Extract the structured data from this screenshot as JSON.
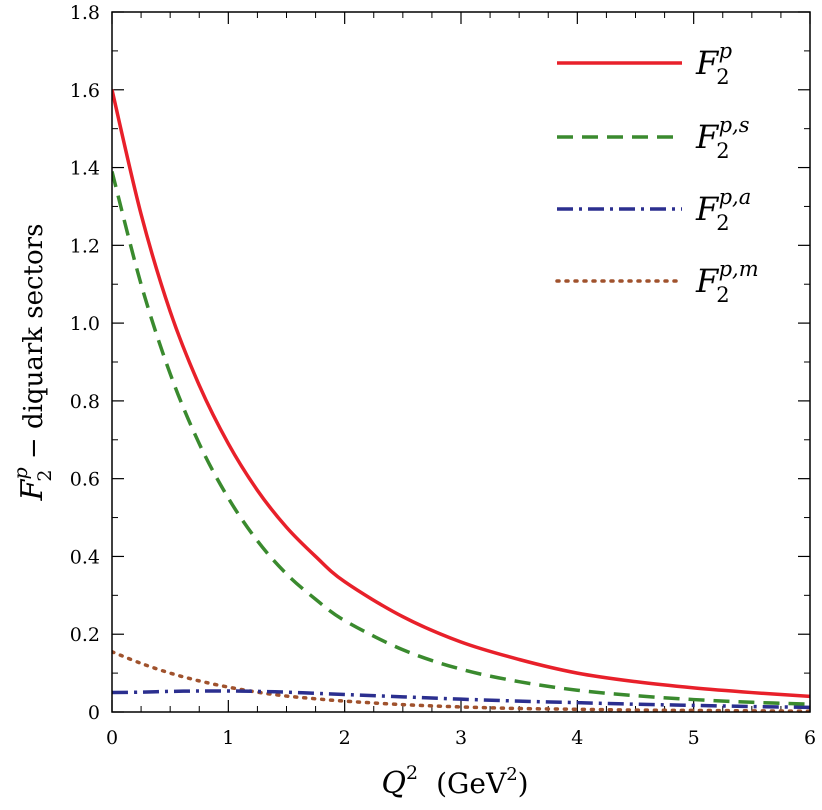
{
  "chart_data": {
    "type": "line",
    "xlabel": {
      "main": "Q",
      "sup": "2",
      "unit_pre": "(GeV",
      "unit_sup": "2",
      "unit_post": ")"
    },
    "ylabel": {
      "main": "F",
      "sub": "2",
      "sup": "p",
      "rest": " − diquark sectors"
    },
    "xlim": [
      0,
      6
    ],
    "ylim": [
      0,
      1.8
    ],
    "xticks": [
      "0",
      "1",
      "2",
      "3",
      "4",
      "5",
      "6"
    ],
    "yticks": [
      "0",
      "0.2",
      "0.4",
      "0.6",
      "0.8",
      "1.0",
      "1.2",
      "1.4",
      "1.6",
      "1.8"
    ],
    "legend_position": "top-right",
    "grid": false,
    "series": [
      {
        "name": "F_2^p",
        "legend": {
          "base": "F",
          "sub": "2",
          "sup": "p"
        },
        "color": "#e8202a",
        "style": "solid",
        "x": [
          0,
          0.25,
          0.5,
          0.75,
          1.0,
          1.25,
          1.5,
          1.75,
          2.0,
          2.5,
          3.0,
          3.5,
          4.0,
          4.5,
          5.0,
          5.5,
          6.0
        ],
        "y": [
          1.6,
          1.28,
          1.03,
          0.84,
          0.69,
          0.57,
          0.475,
          0.4,
          0.335,
          0.245,
          0.18,
          0.135,
          0.1,
          0.078,
          0.062,
          0.05,
          0.04
        ]
      },
      {
        "name": "F_2^{p,s}",
        "legend": {
          "base": "F",
          "sub": "2",
          "sup": "p,s"
        },
        "color": "#3a8a2e",
        "style": "dashed",
        "x": [
          0,
          0.25,
          0.5,
          0.75,
          1.0,
          1.25,
          1.5,
          1.75,
          2.0,
          2.5,
          3.0,
          3.5,
          4.0,
          4.5,
          5.0,
          5.5,
          6.0
        ],
        "y": [
          1.39,
          1.1,
          0.87,
          0.69,
          0.55,
          0.44,
          0.355,
          0.29,
          0.235,
          0.16,
          0.11,
          0.078,
          0.056,
          0.042,
          0.032,
          0.025,
          0.02
        ]
      },
      {
        "name": "F_2^{p,a}",
        "legend": {
          "base": "F",
          "sub": "2",
          "sup": "p,a"
        },
        "color": "#2b2f8f",
        "style": "dashdot",
        "x": [
          0,
          0.25,
          0.5,
          0.75,
          1.0,
          1.25,
          1.5,
          1.75,
          2.0,
          2.5,
          3.0,
          3.5,
          4.0,
          4.5,
          5.0,
          5.5,
          6.0
        ],
        "y": [
          0.05,
          0.051,
          0.053,
          0.054,
          0.054,
          0.053,
          0.051,
          0.048,
          0.045,
          0.039,
          0.033,
          0.028,
          0.024,
          0.02,
          0.017,
          0.014,
          0.012
        ]
      },
      {
        "name": "F_2^{p,m}",
        "legend": {
          "base": "F",
          "sub": "2",
          "sup": "p,m"
        },
        "color": "#a0522d",
        "style": "dotted",
        "x": [
          0,
          0.25,
          0.5,
          0.75,
          1.0,
          1.25,
          1.5,
          1.75,
          2.0,
          2.5,
          3.0,
          3.5,
          4.0,
          4.5,
          5.0,
          5.5,
          6.0
        ],
        "y": [
          0.155,
          0.125,
          0.1,
          0.08,
          0.064,
          0.051,
          0.041,
          0.034,
          0.028,
          0.019,
          0.013,
          0.009,
          0.007,
          0.005,
          0.004,
          0.003,
          0.002
        ]
      }
    ]
  }
}
